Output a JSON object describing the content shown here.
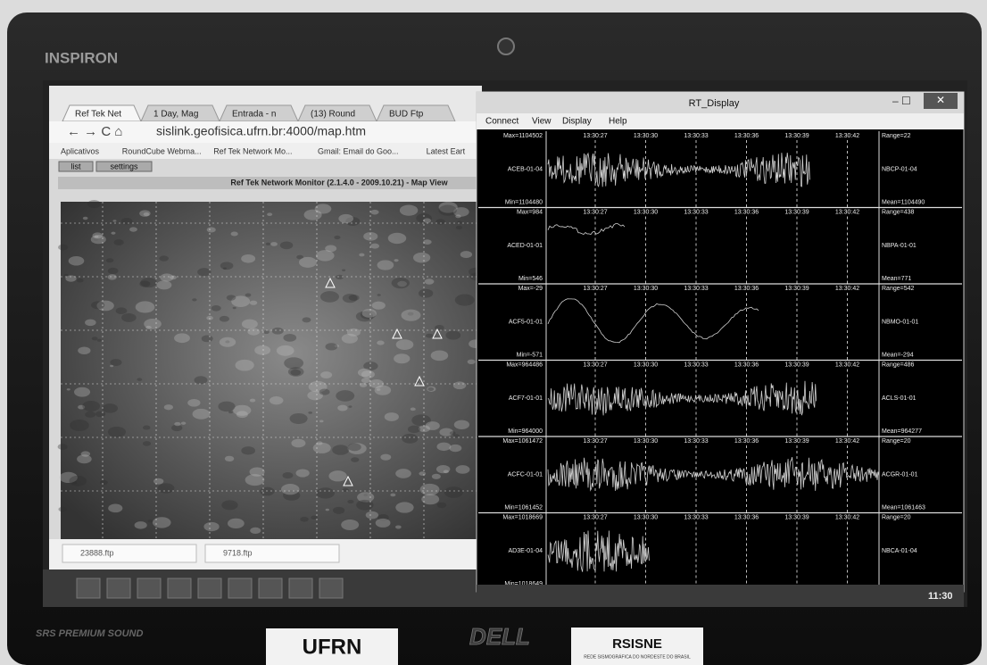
{
  "laptop": {
    "brand": "INSPIRON",
    "audio": "SRS PREMIUM SOUND",
    "stickers": [
      "UFRN",
      "DELL",
      "RSISNE"
    ],
    "sticker_subtitle": "REDE SISMOGRÁFICA DO NORDESTE DO BRASIL"
  },
  "browser": {
    "tabs": [
      "Ref Tek Net",
      "1 Day, Mag",
      "Entrada - n",
      "(13) Round",
      "BUD Ftp"
    ],
    "url": "sislink.geofisica.ufrn.br:4000/map.htm",
    "bookmarks": [
      "Aplicativos",
      "RoundCube Webma...",
      "Ref Tek Network Mo...",
      "Gmail: Email do Goo...",
      "Latest Eart"
    ],
    "buttons": [
      "list",
      "settings"
    ],
    "page_title": "Ref Tek Network Monitor (2.1.4.0 - 2009.10.21) - Map View",
    "downloads": [
      "23888.ftp",
      "9718.ftp"
    ]
  },
  "rt_display": {
    "title": "RT_Display",
    "menu": [
      "Connect",
      "View",
      "Display",
      "Help"
    ],
    "time_ticks": [
      "13:30:27",
      "13:30:30",
      "13:30:33",
      "13:30:36",
      "13:30:39",
      "13:30:42"
    ],
    "panels": [
      {
        "max": "Max=1104502",
        "left": "ACEB-01-04",
        "min": "Min=1104480",
        "range": "Range=22",
        "right": "NBCP-01-04",
        "mean": "Mean=1104490"
      },
      {
        "max": "Max=984",
        "left": "ACED-01-01",
        "min": "Min=546",
        "range": "Range=438",
        "right": "NBPA-01-01",
        "mean": "Mean=771"
      },
      {
        "max": "Max=-29",
        "left": "ACF5-01-01",
        "min": "Min=-571",
        "range": "Range=542",
        "right": "NBMO-01-01",
        "mean": "Mean=-294"
      },
      {
        "max": "Max=964486",
        "left": "ACF7-01-01",
        "min": "Min=964000",
        "range": "Range=486",
        "right": "ACLS-01-01",
        "mean": "Mean=964277"
      },
      {
        "max": "Max=1061472",
        "left": "ACFC-01-01",
        "min": "Min=1061452",
        "range": "Range=20",
        "right": "ACGR-01-01",
        "mean": "Mean=1061463"
      },
      {
        "max": "Max=1018669",
        "left": "AD3E-01-04",
        "min": "Min=1018649",
        "range": "Range=20",
        "right": "NBCA-01-04"
      }
    ],
    "clock": "11:30"
  }
}
